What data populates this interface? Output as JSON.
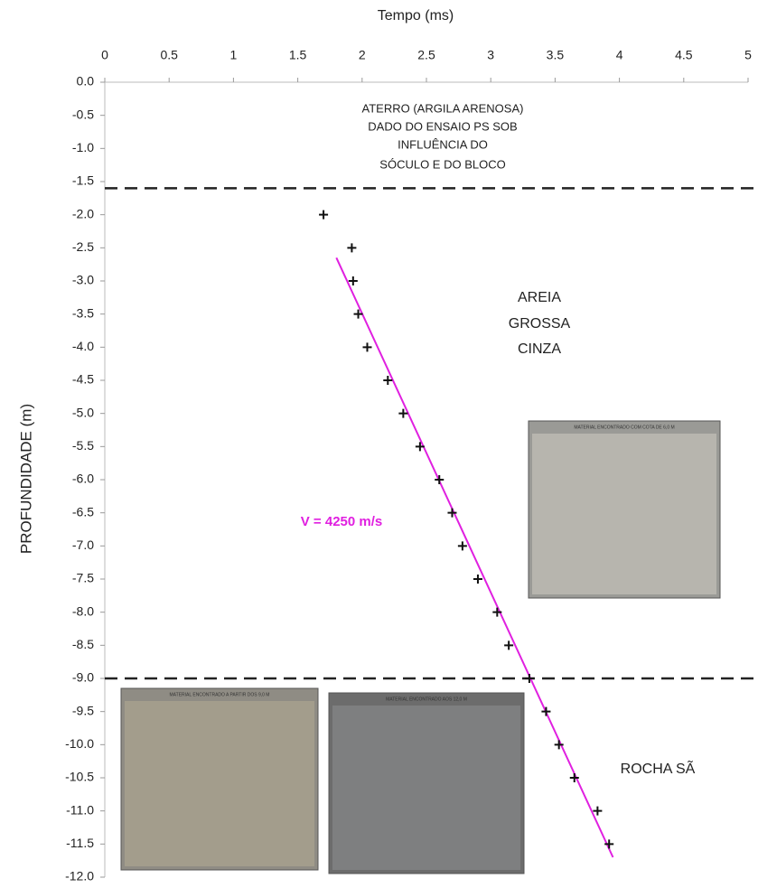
{
  "chart_data": {
    "type": "scatter",
    "xlabel": "Tempo (ms)",
    "ylabel": "PROFUNDIDADE (m)",
    "x": [
      1.7,
      1.92,
      1.93,
      1.97,
      2.04,
      2.2,
      2.32,
      2.45,
      2.6,
      2.7,
      2.78,
      2.9,
      3.05,
      3.14,
      3.3,
      3.43,
      3.53,
      3.65,
      3.83,
      3.92
    ],
    "values": [
      -2.0,
      -2.5,
      -3.0,
      -3.5,
      -4.0,
      -4.5,
      -5.0,
      -5.5,
      -6.0,
      -6.5,
      -7.0,
      -7.5,
      -8.0,
      -8.5,
      -9.0,
      -9.5,
      -10.0,
      -10.5,
      -11.0,
      -11.5
    ],
    "color": "#111111",
    "fit_line": {
      "x": [
        1.8,
        3.95
      ],
      "y": [
        -2.65,
        -11.7
      ],
      "color": "#e020e0"
    },
    "hlines": [
      -1.6,
      -9.0
    ],
    "xlim": [
      0,
      5
    ],
    "xticks": [
      0,
      0.5,
      1,
      1.5,
      2,
      2.5,
      3,
      3.5,
      4,
      4.5,
      5
    ],
    "ylim": [
      -12,
      0
    ],
    "yticks": [
      {
        "value": 0,
        "label": "0.0"
      },
      -0.5,
      {
        "value": -1,
        "label": "-1.0"
      },
      -1.5,
      {
        "value": -2,
        "label": "-2.0"
      },
      -2.5,
      {
        "value": -3,
        "label": "-3.0"
      },
      -3.5,
      {
        "value": -4,
        "label": "-4.0"
      },
      -4.5,
      {
        "value": -5,
        "label": "-5.0"
      },
      -5.5,
      {
        "value": -6,
        "label": "-6.0"
      },
      -6.5,
      {
        "value": -7,
        "label": "-7.0"
      },
      -7.5,
      {
        "value": -8,
        "label": "-8.0"
      },
      -8.5,
      {
        "value": -9,
        "label": "-9.0"
      },
      -9.5,
      {
        "value": -10,
        "label": "-10.0"
      },
      -10.5,
      {
        "value": -11,
        "label": "-11.0"
      },
      -11.5,
      {
        "value": -12,
        "label": "-12.0"
      }
    ],
    "annotations": [
      [
        "ATERRO (ARGILA ARENOSA)",
        "DADO DO ENSAIO PS SOB",
        "INFLUÊNCIA DO",
        "SÓCULO E DO BLOCO"
      ],
      [
        "AREIA",
        "GROSSA",
        "CINZA"
      ],
      [
        "V = 4250 m/s"
      ],
      [
        "ROCHA SÃ"
      ]
    ],
    "photo_captions": [
      "MATERIAL ENCONTRADO COM COTA DE 6,0 M",
      "MATERIAL ENCONTRADO A PARTIR DOS 9,0 M",
      "MATERIAL ENCONTRADO AOS 12,0 M"
    ]
  }
}
